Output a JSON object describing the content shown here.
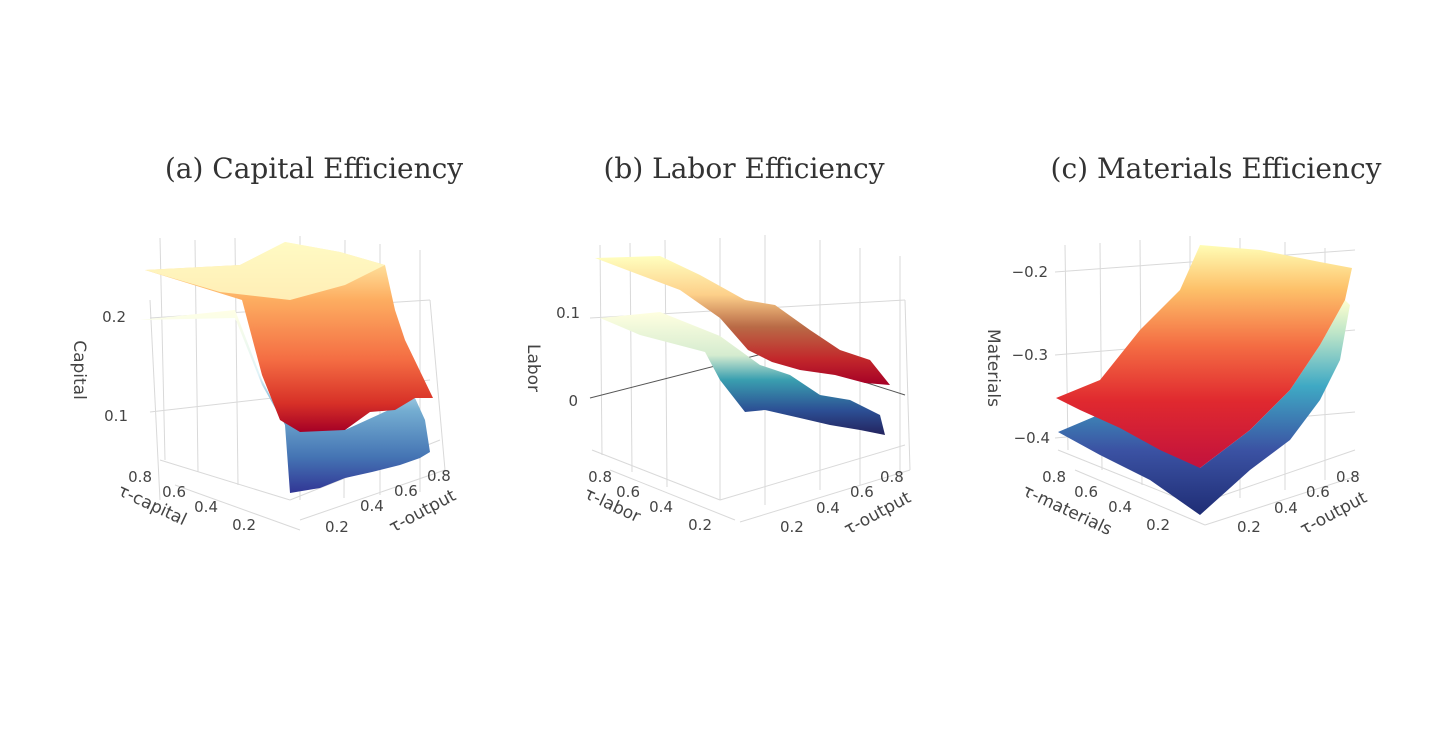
{
  "chart_data": [
    {
      "type": "surface",
      "title": "(a) Capital Efficiency",
      "xlabel": "τ-output",
      "ylabel": "τ-capital",
      "zlabel": "Capital",
      "x_ticks": [
        "0.2",
        "0.4",
        "0.6",
        "0.8"
      ],
      "y_ticks": [
        "0.2",
        "0.4",
        "0.6",
        "0.8"
      ],
      "z_ticks": [
        "0.1",
        "0.2"
      ],
      "colorscale": [
        "#313695",
        "#4575b4",
        "#74add1",
        "#abd9e9",
        "#e0f3f8",
        "#ffffbf",
        "#fee090",
        "#fdae61",
        "#f46d43",
        "#d73027",
        "#a50026"
      ],
      "surfaces": [
        {
          "name": "",
          "tau_input": 0.1,
          "tau_output": [
            0.05,
            0.5,
            0.95
          ],
          "z": [
            0.21,
            0.06,
            0.05
          ]
        },
        {
          "name": "",
          "tau_input": 0.9,
          "tau_output": [
            0.05,
            0.5,
            0.95
          ],
          "z": [
            0.26,
            0.15,
            0.13
          ]
        }
      ]
    },
    {
      "type": "surface",
      "title": "(b) Labor Efficiency",
      "xlabel": "τ-output",
      "ylabel": "τ-labor",
      "zlabel": "Labor",
      "x_ticks": [
        "0.2",
        "0.4",
        "0.6",
        "0.8"
      ],
      "y_ticks": [
        "0.2",
        "0.4",
        "0.6",
        "0.8"
      ],
      "z_ticks": [
        "0",
        "0.1"
      ],
      "colorscale": [
        "#313695",
        "#4575b4",
        "#74add1",
        "#abd9e9",
        "#e0f3f8",
        "#ffffbf",
        "#fee090",
        "#fdae61",
        "#f46d43",
        "#d73027",
        "#a50026"
      ],
      "surfaces": [
        {
          "name": "",
          "tau_input": 0.1,
          "tau_output": [
            0.05,
            0.5,
            0.95
          ],
          "z": [
            0.11,
            0.0,
            -0.05
          ]
        },
        {
          "name": "",
          "tau_input": 0.9,
          "tau_output": [
            0.05,
            0.5,
            0.95
          ],
          "z": [
            0.16,
            0.07,
            0.03
          ]
        }
      ]
    },
    {
      "type": "surface",
      "title": "(c) Materials Efficiency",
      "xlabel": "τ-output",
      "ylabel": "τ-materials",
      "zlabel": "Materials",
      "x_ticks": [
        "0.2",
        "0.4",
        "0.6",
        "0.8"
      ],
      "y_ticks": [
        "0.2",
        "0.4",
        "0.6",
        "0.8"
      ],
      "z_ticks": [
        "−0.4",
        "−0.3",
        "−0.2"
      ],
      "colorscale": [
        "#313695",
        "#4575b4",
        "#74add1",
        "#abd9e9",
        "#e0f3f8",
        "#ffffbf",
        "#fee090",
        "#fdae61",
        "#f46d43",
        "#d73027",
        "#a50026"
      ],
      "surfaces": [
        {
          "name": "",
          "tau_input": 0.1,
          "tau_output": [
            0.05,
            0.5,
            0.95
          ],
          "z": [
            -0.48,
            -0.36,
            -0.25
          ]
        },
        {
          "name": "",
          "tau_input": 0.9,
          "tau_output": [
            0.05,
            0.5,
            0.95
          ],
          "z": [
            -0.4,
            -0.28,
            -0.17
          ]
        }
      ]
    }
  ]
}
